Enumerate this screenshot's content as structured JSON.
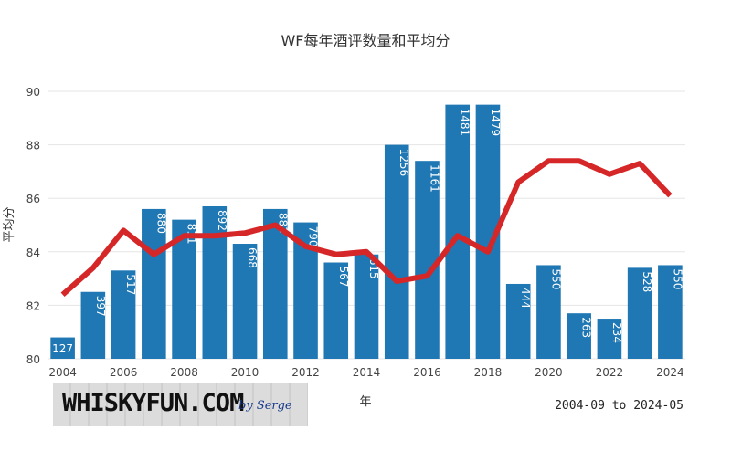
{
  "chart_data": {
    "type": "bar+line",
    "title": "WF每年酒评数量和平均分",
    "xlabel": "年",
    "ylabel": "平均分",
    "ylim": [
      80,
      90
    ],
    "yticks": [
      80,
      82,
      84,
      86,
      88,
      90
    ],
    "xticks": [
      2004,
      2006,
      2008,
      2010,
      2012,
      2014,
      2016,
      2018,
      2020,
      2022,
      2024
    ],
    "grid": true,
    "years": [
      2004,
      2005,
      2006,
      2007,
      2008,
      2009,
      2010,
      2011,
      2012,
      2013,
      2014,
      2015,
      2016,
      2017,
      2018,
      2019,
      2020,
      2021,
      2022,
      2023,
      2024
    ],
    "bar_heights_score": [
      80.8,
      82.5,
      83.3,
      85.6,
      85.2,
      85.7,
      84.3,
      85.6,
      85.1,
      83.6,
      83.9,
      88.0,
      87.4,
      89.5,
      89.5,
      82.8,
      83.5,
      81.7,
      81.5,
      83.4,
      83.5
    ],
    "review_counts": [
      "127",
      "397",
      "517",
      "880",
      "811",
      "892",
      "668",
      "883",
      "790",
      "567",
      "615",
      "1256",
      "1161",
      "1481",
      "1479",
      "444",
      "550",
      "263",
      "234",
      "528",
      "550"
    ],
    "average_scores": [
      82.4,
      83.4,
      84.8,
      83.9,
      84.6,
      84.6,
      84.7,
      85.0,
      84.2,
      83.9,
      84.0,
      82.9,
      83.1,
      84.6,
      84.0,
      86.6,
      87.4,
      87.4,
      86.9,
      87.3,
      86.1
    ],
    "bar_color": "#1f77b4",
    "line_color": "#d62728"
  },
  "logo": {
    "text": "WHISKYFUN.COM",
    "byline": "by Serge"
  },
  "date_range": "2004-09 to 2024-05"
}
